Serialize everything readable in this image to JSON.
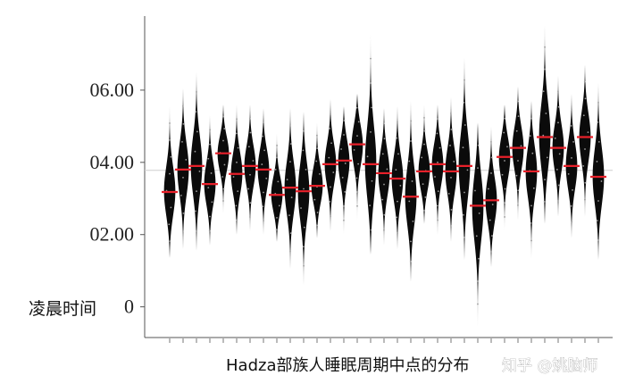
{
  "chart_data": {
    "type": "violin",
    "title": "",
    "caption": "Hadza部族人睡眠周期中点的分布",
    "ylabel": "凌晨时间",
    "yticks": [
      "0",
      "02.00",
      "04.00",
      "06.00"
    ],
    "ytick_values": [
      0,
      2,
      4,
      6
    ],
    "ylim": [
      -0.85,
      8.05
    ],
    "reference_line": 3.78,
    "grid": false,
    "legend": "none",
    "median_color": "#e8202a",
    "violin_color": "#0b0b0b",
    "series": [
      {
        "median": 3.18,
        "min": 1.35,
        "max": 5.55
      },
      {
        "median": 3.8,
        "min": 1.6,
        "max": 6.05
      },
      {
        "median": 3.9,
        "min": 1.55,
        "max": 6.5
      },
      {
        "median": 3.4,
        "min": 1.7,
        "max": 5.3
      },
      {
        "median": 4.25,
        "min": 2.6,
        "max": 5.6
      },
      {
        "median": 3.68,
        "min": 2.0,
        "max": 5.6
      },
      {
        "median": 3.9,
        "min": 2.1,
        "max": 5.6
      },
      {
        "median": 3.8,
        "min": 2.0,
        "max": 5.5
      },
      {
        "median": 3.1,
        "min": 1.8,
        "max": 4.8
      },
      {
        "median": 3.3,
        "min": 1.05,
        "max": 5.5
      },
      {
        "median": 3.2,
        "min": 0.6,
        "max": 5.4
      },
      {
        "median": 3.35,
        "min": 1.9,
        "max": 5.1
      },
      {
        "median": 3.95,
        "min": 2.1,
        "max": 5.75
      },
      {
        "median": 4.05,
        "min": 2.0,
        "max": 5.55
      },
      {
        "median": 4.5,
        "min": 2.4,
        "max": 5.9
      },
      {
        "median": 3.95,
        "min": 1.45,
        "max": 7.55
      },
      {
        "median": 3.7,
        "min": 1.7,
        "max": 5.5
      },
      {
        "median": 3.55,
        "min": 1.6,
        "max": 5.55
      },
      {
        "median": 3.05,
        "min": 0.7,
        "max": 5.7
      },
      {
        "median": 3.75,
        "min": 2.3,
        "max": 5.6
      },
      {
        "median": 3.95,
        "min": 2.0,
        "max": 5.6
      },
      {
        "median": 3.75,
        "min": 1.8,
        "max": 5.8
      },
      {
        "median": 3.9,
        "min": 1.3,
        "max": 6.9
      },
      {
        "median": 2.8,
        "min": -0.55,
        "max": 5.1
      },
      {
        "median": 2.95,
        "min": 1.1,
        "max": 5.0
      },
      {
        "median": 4.15,
        "min": 2.1,
        "max": 5.6
      },
      {
        "median": 4.4,
        "min": 2.4,
        "max": 6.1
      },
      {
        "median": 3.75,
        "min": 1.35,
        "max": 5.7
      },
      {
        "median": 4.7,
        "min": 2.3,
        "max": 7.8
      },
      {
        "median": 4.4,
        "min": 2.5,
        "max": 6.4
      },
      {
        "median": 3.9,
        "min": 1.9,
        "max": 5.9
      },
      {
        "median": 4.7,
        "min": 2.5,
        "max": 6.7
      },
      {
        "median": 3.6,
        "min": 1.3,
        "max": 6.2
      }
    ]
  },
  "watermark": "知乎 @姚脑师"
}
